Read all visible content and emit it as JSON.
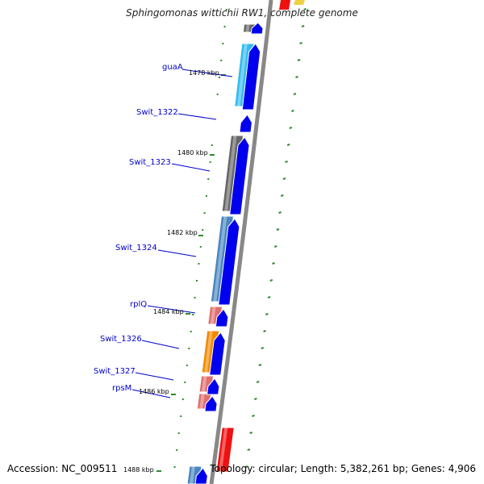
{
  "title": "Sphingomonas wittichii RW1, complete genome",
  "footer": {
    "accession": "Accession: NC_009511",
    "topology": "Topology: circular; Length: 5,382,261 bp; Genes: 4,906"
  },
  "kbp_labels": [
    "1478 kbp",
    "1480 kbp",
    "1482 kbp",
    "1484 kbp",
    "1486 kbp",
    "1488 kbp"
  ],
  "gene_labels": [
    "guaA",
    "Swit_1322",
    "Swit_1323",
    "Swit_1324",
    "rplQ",
    "Swit_1326",
    "Swit_1327",
    "rpsM"
  ],
  "colors": {
    "backbone": "#888888",
    "cds_arrow": "#0000ee",
    "tick": "#2e8b2e",
    "label_text": "#0000cc",
    "leader_line": "#0000cc",
    "feature_dark_gray": "#666666",
    "feature_cyan": "#33bbee",
    "feature_steel_blue": "#4a86c0",
    "feature_salmon": "#e07070",
    "feature_orange": "#f08a00",
    "feature_red": "#ee1111",
    "feature_yellow": "#f0d040"
  }
}
